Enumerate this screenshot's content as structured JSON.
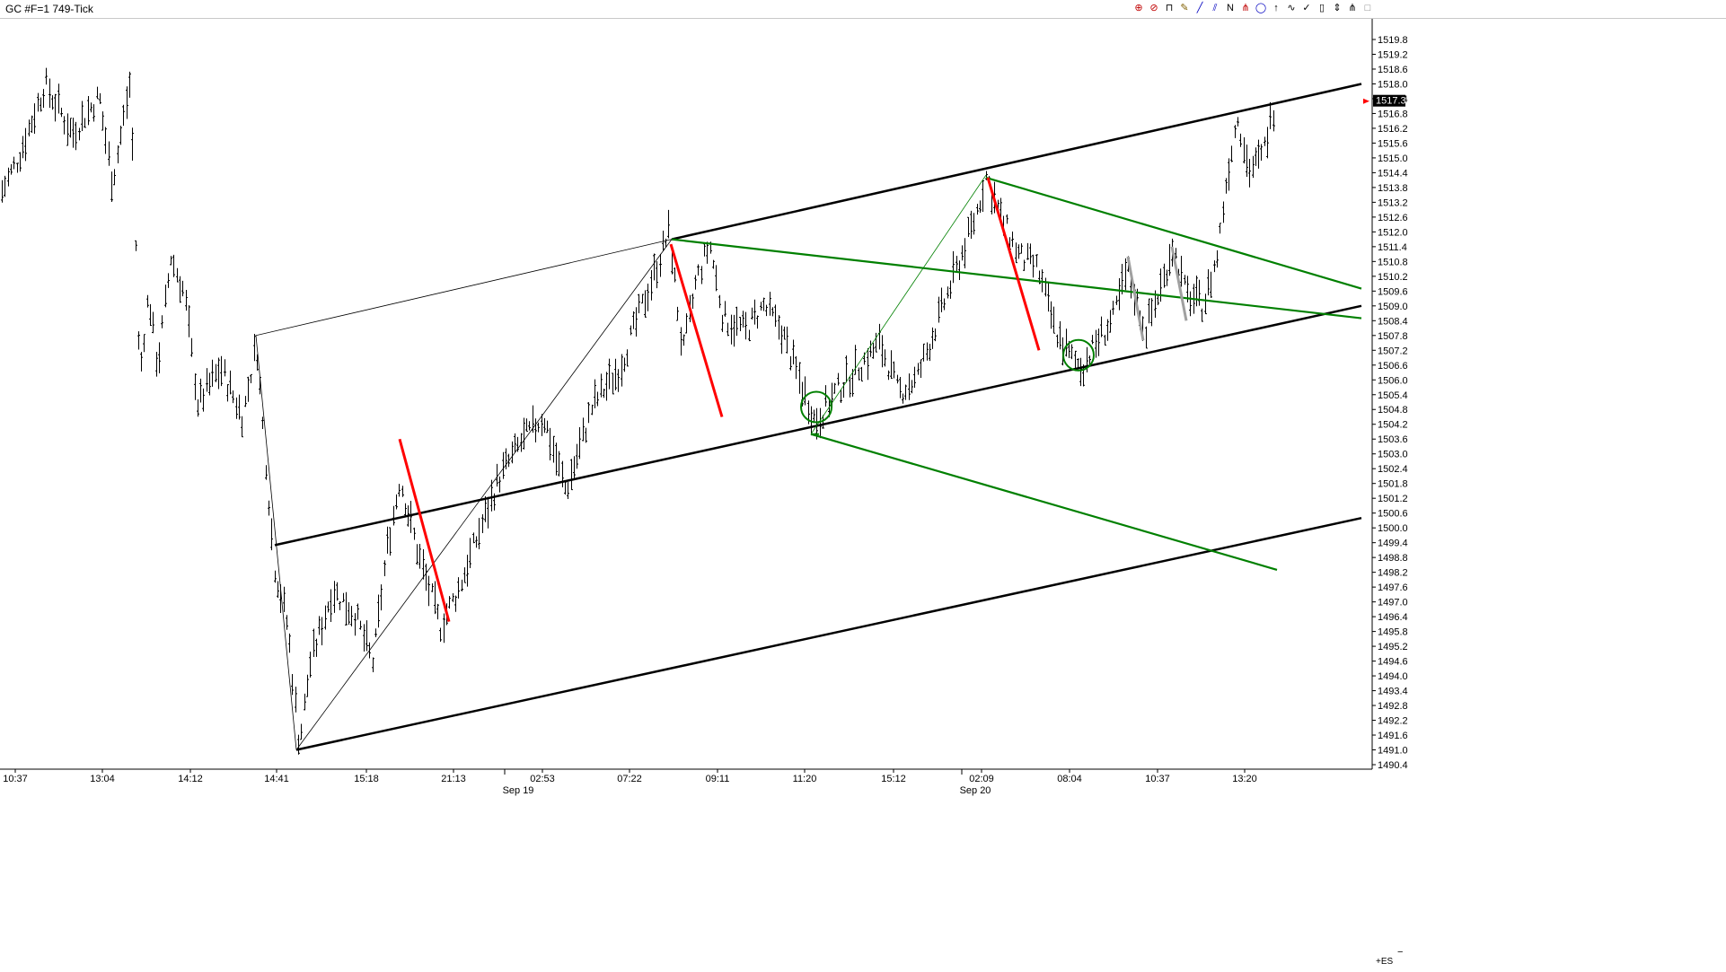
{
  "window": {
    "title": "GC #F=1 749-Tick"
  },
  "toolbar": {
    "tools": [
      {
        "name": "cursor-tool",
        "glyph": "⊕",
        "color": "#c00000"
      },
      {
        "name": "no-entry-icon",
        "glyph": "⊘",
        "color": "#c00000"
      },
      {
        "name": "bar-tool",
        "glyph": "⊓",
        "color": "#000000"
      },
      {
        "name": "pencil-icon",
        "glyph": "✎",
        "color": "#806000"
      },
      {
        "name": "line-tool",
        "glyph": "╱",
        "color": "#0000c0"
      },
      {
        "name": "parallel-lines-tool",
        "glyph": "⫽",
        "color": "#0000c0"
      },
      {
        "name": "n-tool",
        "glyph": "N",
        "color": "#000000"
      },
      {
        "name": "pitchfork-tool",
        "glyph": "⋔",
        "color": "#c00000"
      },
      {
        "name": "circle-tool",
        "glyph": "◯",
        "color": "#0000c0"
      },
      {
        "name": "arrow-up-icon",
        "glyph": "↑",
        "color": "#000000"
      },
      {
        "name": "zigzag-tool",
        "glyph": "∿",
        "color": "#000000"
      },
      {
        "name": "check-icon",
        "glyph": "✓",
        "color": "#000000"
      },
      {
        "name": "battery-icon",
        "glyph": "▯",
        "color": "#000000"
      },
      {
        "name": "up-down-icon",
        "glyph": "⇕",
        "color": "#000000"
      },
      {
        "name": "fork-icon",
        "glyph": "⋔",
        "color": "#000000"
      },
      {
        "name": "square-icon",
        "glyph": "□",
        "color": "#808080"
      }
    ]
  },
  "chart_data": {
    "type": "bar",
    "price_scale": {
      "ticks": [
        "1519.8",
        "1519.2",
        "1518.6",
        "1518.0",
        "1517.4",
        "1516.8",
        "1516.2",
        "1515.6",
        "1515.0",
        "1514.4",
        "1513.8",
        "1513.2",
        "1512.6",
        "1512.0",
        "1511.4",
        "1510.8",
        "1510.2",
        "1509.6",
        "1509.0",
        "1508.4",
        "1507.8",
        "1507.2",
        "1506.6",
        "1506.0",
        "1505.4",
        "1504.8",
        "1504.2",
        "1503.6",
        "1503.0",
        "1502.4",
        "1501.8",
        "1501.2",
        "1500.6",
        "1500.0",
        "1499.4",
        "1498.8",
        "1498.2",
        "1497.6",
        "1497.0",
        "1496.4",
        "1495.8",
        "1495.2",
        "1494.6",
        "1494.0",
        "1493.4",
        "1492.8",
        "1492.2",
        "1491.6",
        "1491.0",
        "1490.4"
      ],
      "current_price": "1517.3",
      "ylim": [
        1490.4,
        1519.8
      ]
    },
    "time_axis": {
      "labels": [
        "10:37",
        "13:04",
        "14:12",
        "14:41",
        "15:18",
        "21:13",
        "02:53",
        "07:22",
        "09:11",
        "11:20",
        "15:12",
        "02:09",
        "08:04",
        "10:37",
        "13:20"
      ],
      "dates": [
        "Sep 19",
        "Sep 20"
      ]
    },
    "ohlc_anchors": [
      [
        0,
        1513.5
      ],
      [
        20,
        1515.0
      ],
      [
        50,
        1518.0
      ],
      [
        80,
        1516.0
      ],
      [
        110,
        1517.5
      ],
      [
        125,
        1514.0
      ],
      [
        145,
        1518.2
      ],
      [
        155,
        1506.0
      ],
      [
        165,
        1509.5
      ],
      [
        175,
        1506.5
      ],
      [
        190,
        1511.0
      ],
      [
        205,
        1509.5
      ],
      [
        220,
        1505.0
      ],
      [
        245,
        1506.5
      ],
      [
        270,
        1504.5
      ],
      [
        285,
        1507.5
      ],
      [
        305,
        1498.5
      ],
      [
        320,
        1496.0
      ],
      [
        333,
        1491.2
      ],
      [
        345,
        1494.5
      ],
      [
        370,
        1497.5
      ],
      [
        395,
        1496.5
      ],
      [
        415,
        1494.5
      ],
      [
        430,
        1499.0
      ],
      [
        445,
        1502.0
      ],
      [
        465,
        1499.0
      ],
      [
        490,
        1496.0
      ],
      [
        510,
        1497.5
      ],
      [
        530,
        1499.5
      ],
      [
        555,
        1502.0
      ],
      [
        580,
        1503.5
      ],
      [
        605,
        1504.5
      ],
      [
        630,
        1501.5
      ],
      [
        660,
        1505.0
      ],
      [
        690,
        1506.5
      ],
      [
        715,
        1509.0
      ],
      [
        735,
        1511.0
      ],
      [
        745,
        1512.0
      ],
      [
        760,
        1507.0
      ],
      [
        775,
        1510.0
      ],
      [
        790,
        1511.5
      ],
      [
        805,
        1508.5
      ],
      [
        830,
        1508.0
      ],
      [
        850,
        1509.0
      ],
      [
        870,
        1508.0
      ],
      [
        895,
        1505.5
      ],
      [
        908,
        1504.3
      ],
      [
        930,
        1505.5
      ],
      [
        955,
        1506.5
      ],
      [
        980,
        1507.5
      ],
      [
        1000,
        1505.5
      ],
      [
        1020,
        1506.0
      ],
      [
        1045,
        1508.5
      ],
      [
        1065,
        1510.5
      ],
      [
        1085,
        1512.5
      ],
      [
        1098,
        1514.3
      ],
      [
        1115,
        1512.5
      ],
      [
        1135,
        1511.0
      ],
      [
        1155,
        1510.5
      ],
      [
        1175,
        1508.0
      ],
      [
        1190,
        1507.0
      ],
      [
        1205,
        1506.5
      ],
      [
        1220,
        1507.5
      ],
      [
        1240,
        1508.5
      ],
      [
        1255,
        1510.5
      ],
      [
        1275,
        1508.0
      ],
      [
        1295,
        1510.0
      ],
      [
        1305,
        1511.5
      ],
      [
        1320,
        1509.5
      ],
      [
        1340,
        1509.0
      ],
      [
        1355,
        1511.0
      ],
      [
        1365,
        1514.0
      ],
      [
        1378,
        1516.8
      ],
      [
        1390,
        1514.5
      ],
      [
        1405,
        1515.0
      ],
      [
        1420,
        1517.3
      ]
    ],
    "lines": [
      {
        "label": "",
        "color": "#000000",
        "kind": "median",
        "points": [
          {
            "time": "14:41",
            "price": 1499.3
          },
          {
            "time": "end",
            "price": 1509.0
          }
        ]
      },
      {
        "label": "",
        "color": "#000000",
        "kind": "upper",
        "points": [
          {
            "time": "07:22",
            "price": 1511.7
          },
          {
            "time": "end",
            "price": 1518.0
          }
        ]
      },
      {
        "label": "",
        "color": "#000000",
        "kind": "lower",
        "points": [
          {
            "time": "14:41",
            "price": 1491.0
          },
          {
            "time": "end",
            "price": 1500.4
          }
        ]
      },
      {
        "label": "",
        "color": "#008000",
        "kind": "green-upper",
        "points": [
          {
            "time": "07:22",
            "price": 1511.7
          },
          {
            "time": "end",
            "price": 1508.5
          }
        ]
      },
      {
        "label": "",
        "color": "#008000",
        "kind": "green-mid",
        "points": [
          {
            "time": "02:09",
            "price": 1514.2
          },
          {
            "time": "end",
            "price": 1509.7
          }
        ]
      },
      {
        "label": "",
        "color": "#008000",
        "kind": "green-lower",
        "points": [
          {
            "time": "11:20",
            "price": 1503.8
          },
          {
            "time": "end",
            "price": 1498.3
          }
        ]
      }
    ],
    "annotations": [
      {
        "kind": "circle",
        "color": "#008000",
        "time": "11:20",
        "price": 1504.9
      },
      {
        "kind": "circle",
        "color": "#008000",
        "time": "08:04",
        "price": 1507.0
      }
    ]
  },
  "corner": {
    "label": "+ES",
    "minus": "−"
  }
}
